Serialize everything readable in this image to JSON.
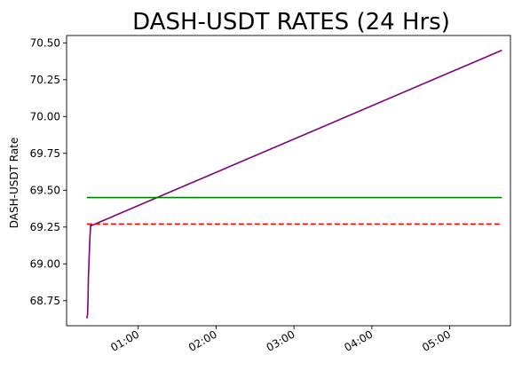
{
  "chart_data": {
    "type": "line",
    "title": "DASH-USDT RATES (24 Hrs)",
    "xlabel": "",
    "ylabel": "DASH-USDT Rate",
    "x_tick_labels": [
      "01:00",
      "02:00",
      "03:00",
      "04:00",
      "05:00"
    ],
    "x_tick_values": [
      1.0,
      2.0,
      3.0,
      4.0,
      5.0
    ],
    "xlim": [
      0.08,
      5.78
    ],
    "y_tick_labels": [
      "68.75",
      "69.00",
      "69.25",
      "69.50",
      "69.75",
      "70.00",
      "70.25",
      "70.50"
    ],
    "y_tick_values": [
      68.75,
      69.0,
      69.25,
      69.5,
      69.75,
      70.0,
      70.25,
      70.5
    ],
    "ylim": [
      68.58,
      70.55
    ],
    "grid": false,
    "series": [
      {
        "color": "#800080",
        "style": "solid",
        "x": [
          0.34,
          0.35,
          0.355,
          0.36,
          0.37,
          0.38,
          0.39,
          0.4,
          5.67
        ],
        "y": [
          68.63,
          68.66,
          68.75,
          68.9,
          69.05,
          69.18,
          69.27,
          69.26,
          70.45
        ]
      },
      {
        "color": "#008000",
        "style": "solid",
        "x": [
          0.34,
          5.67
        ],
        "y": [
          69.45,
          69.45
        ]
      },
      {
        "color": "#ff0000",
        "style": "dashed",
        "x": [
          0.34,
          5.67
        ],
        "y": [
          69.27,
          69.27
        ]
      }
    ]
  }
}
